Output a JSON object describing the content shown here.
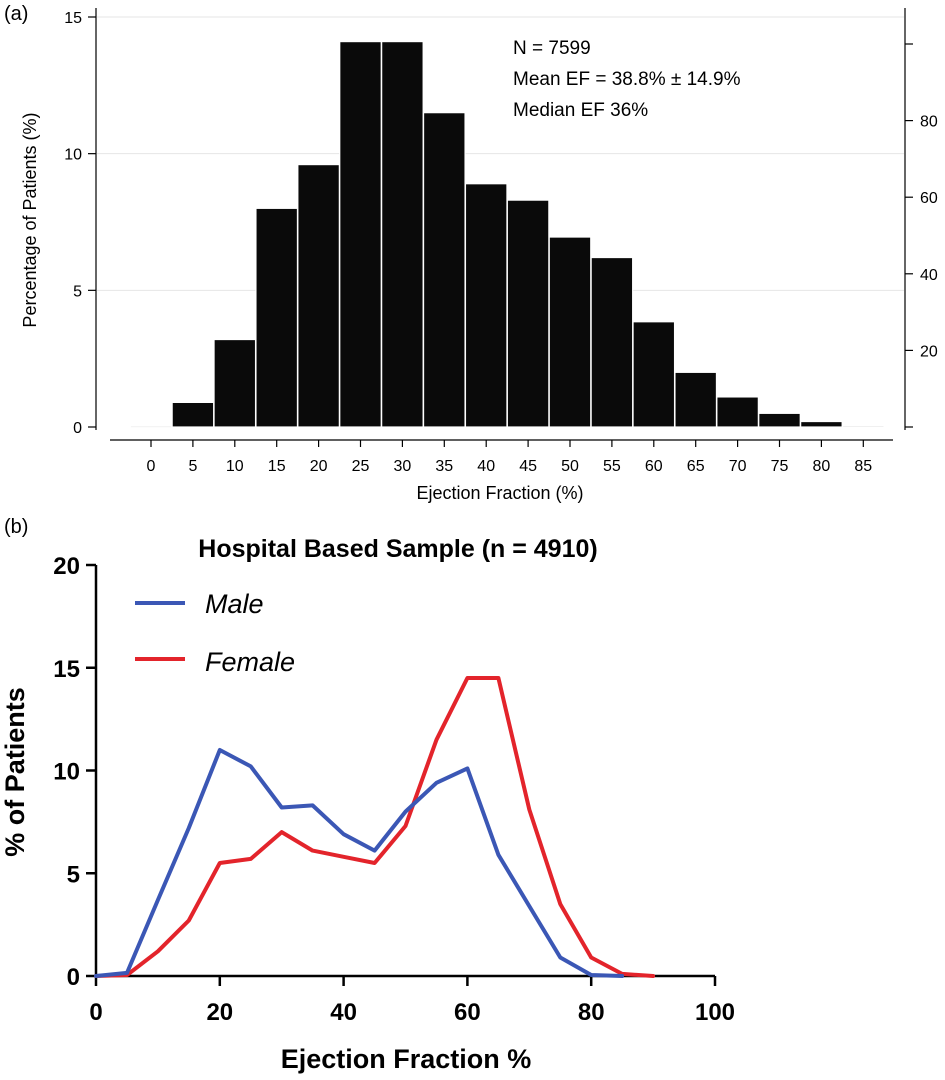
{
  "chart_data": [
    {
      "panel": "(a)",
      "type": "bar",
      "xlabel": "Ejection Fraction (%)",
      "ylabel": "Percentage of Patients (%)",
      "x_tick_labels": [
        "0",
        "5",
        "10",
        "15",
        "20",
        "25",
        "30",
        "35",
        "40",
        "45",
        "50",
        "55",
        "60",
        "65",
        "70",
        "75",
        "80",
        "85"
      ],
      "categories": [
        0,
        5,
        10,
        15,
        20,
        25,
        30,
        35,
        40,
        45,
        50,
        55,
        60,
        65,
        70,
        75,
        80,
        85
      ],
      "values": [
        0.03,
        0.9,
        3.2,
        8.0,
        9.6,
        14.1,
        14.1,
        11.5,
        8.9,
        8.3,
        6.95,
        6.2,
        3.85,
        2.0,
        1.1,
        0.5,
        0.2,
        0.05
      ],
      "ylim": [
        0,
        15
      ],
      "y_ticks": [
        0,
        5,
        10,
        15
      ],
      "y_tick_labels": [
        "0",
        "5",
        "10",
        "15"
      ],
      "right_axis": {
        "ticks": [
          20,
          40,
          60,
          80,
          100
        ],
        "tick_labels": [
          "20",
          "40",
          "60",
          "80",
          ""
        ],
        "ylim": [
          0,
          100
        ]
      },
      "annotations": [
        "N = 7599",
        "Mean EF = 38.8% ± 14.9%",
        "Median EF 36%"
      ],
      "grid": true,
      "bar_color": "#0a0a0a"
    },
    {
      "panel": "(b)",
      "type": "line",
      "title": "Hospital Based Sample (n = 4910)",
      "xlabel": "Ejection Fraction %",
      "ylabel": "% of Patients",
      "xlim": [
        0,
        100
      ],
      "ylim": [
        0,
        20
      ],
      "x_ticks": [
        0,
        20,
        40,
        60,
        80,
        100
      ],
      "x_tick_labels": [
        "0",
        "20",
        "40",
        "60",
        "80",
        "100"
      ],
      "y_ticks": [
        0,
        5,
        10,
        15,
        20
      ],
      "y_tick_labels": [
        "0",
        "5",
        "10",
        "15",
        "20"
      ],
      "legend_position": "top-left",
      "series": [
        {
          "name": "Male",
          "color": "#3b57b5",
          "x": [
            0,
            5,
            10,
            15,
            20,
            25,
            30,
            35,
            40,
            45,
            50,
            55,
            60,
            65,
            70,
            75,
            80,
            85
          ],
          "values": [
            0,
            0.15,
            3.7,
            7.2,
            11.0,
            10.2,
            8.2,
            8.3,
            6.9,
            6.1,
            8.0,
            9.4,
            10.1,
            5.9,
            3.4,
            0.9,
            0.05,
            0
          ]
        },
        {
          "name": "Female",
          "color": "#e3242b",
          "x": [
            0,
            5,
            10,
            15,
            20,
            25,
            30,
            35,
            40,
            45,
            50,
            55,
            60,
            65,
            70,
            75,
            80,
            85,
            90
          ],
          "values": [
            0,
            0.05,
            1.2,
            2.7,
            5.5,
            5.7,
            7.0,
            6.1,
            5.8,
            5.5,
            7.3,
            11.5,
            14.5,
            14.5,
            8.1,
            3.5,
            0.9,
            0.1,
            0
          ]
        }
      ]
    }
  ]
}
